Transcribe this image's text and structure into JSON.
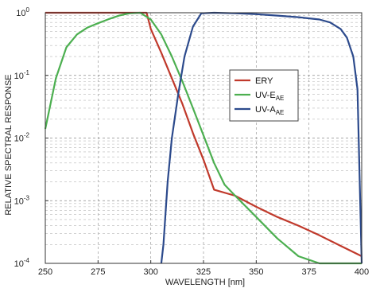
{
  "chart_data": {
    "type": "line",
    "title": "",
    "xlabel": "WAVELENGTH [nm]",
    "ylabel": "RELATIVE SPECTRAL RESPONSE",
    "xlim": [
      250,
      400
    ],
    "ylim": [
      0.0001,
      1
    ],
    "yscale": "log",
    "grid": true,
    "legend_position": "right-middle",
    "x_ticks": [
      250,
      275,
      300,
      325,
      350,
      375,
      400
    ],
    "y_ticks": [
      {
        "value": 0.0001,
        "base": "10",
        "exp": "-4"
      },
      {
        "value": 0.001,
        "base": "10",
        "exp": "-3"
      },
      {
        "value": 0.01,
        "base": "10",
        "exp": "-2"
      },
      {
        "value": 0.1,
        "base": "10",
        "exp": "-1"
      },
      {
        "value": 1,
        "base": "10",
        "exp": "0"
      }
    ],
    "series": [
      {
        "name": "ERY",
        "color": "#c0392b",
        "x": [
          250,
          298,
          300,
          305,
          310,
          315,
          320,
          325,
          330,
          340,
          350,
          360,
          370,
          380,
          390,
          400
        ],
        "y": [
          1,
          1,
          0.55,
          0.23,
          0.09,
          0.035,
          0.012,
          0.0045,
          0.0015,
          0.0012,
          0.0008,
          0.00055,
          0.0004,
          0.00028,
          0.00019,
          0.00013
        ]
      },
      {
        "name": "UV-E",
        "name_sub": "AE",
        "color": "#4caf50",
        "x": [
          250,
          255,
          260,
          265,
          270,
          275,
          280,
          285,
          290,
          295,
          300,
          305,
          310,
          315,
          320,
          325,
          330,
          335,
          340,
          350,
          360,
          370,
          380,
          390,
          400
        ],
        "y": [
          0.014,
          0.09,
          0.28,
          0.45,
          0.58,
          0.68,
          0.79,
          0.9,
          0.98,
          1,
          0.78,
          0.45,
          0.2,
          0.08,
          0.03,
          0.011,
          0.004,
          0.0018,
          0.0012,
          0.00055,
          0.00025,
          0.00013,
          0.0001,
          0.0001,
          0.0001
        ]
      },
      {
        "name": "UV-A",
        "name_sub": "AE",
        "color": "#2c4a8c",
        "x": [
          305,
          306,
          308,
          310,
          313,
          316,
          320,
          324,
          330,
          340,
          350,
          360,
          370,
          380,
          385,
          390,
          393,
          396,
          398,
          400
        ],
        "y": [
          0.0001,
          0.0002,
          0.002,
          0.01,
          0.05,
          0.2,
          0.6,
          0.98,
          1,
          0.98,
          0.95,
          0.9,
          0.85,
          0.78,
          0.7,
          0.55,
          0.4,
          0.2,
          0.06,
          0.0001
        ]
      }
    ]
  }
}
